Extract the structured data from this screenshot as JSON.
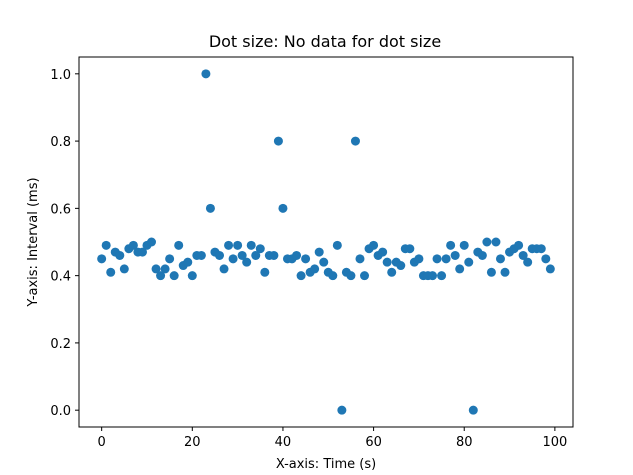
{
  "chart_data": {
    "type": "scatter",
    "title": "Dot size: No data for dot size",
    "xlabel": "X-axis: Time (s)",
    "ylabel": "Y-axis: Interval (ms)",
    "xlim": [
      -5,
      104
    ],
    "ylim": [
      -0.05,
      1.05
    ],
    "xticks": [
      0,
      20,
      40,
      60,
      80,
      100
    ],
    "xtick_labels": [
      "0",
      "20",
      "40",
      "60",
      "80",
      "100"
    ],
    "yticks": [
      0.0,
      0.2,
      0.4,
      0.6,
      0.8,
      1.0
    ],
    "ytick_labels": [
      "0.0",
      "0.2",
      "0.4",
      "0.6",
      "0.8",
      "1.0"
    ],
    "grid": false,
    "marker_color": "#1f77b4",
    "x": [
      0,
      1,
      2,
      3,
      4,
      5,
      6,
      7,
      8,
      9,
      10,
      11,
      12,
      13,
      14,
      15,
      16,
      17,
      18,
      19,
      20,
      21,
      22,
      23,
      24,
      25,
      26,
      27,
      28,
      29,
      30,
      31,
      32,
      33,
      34,
      35,
      36,
      37,
      38,
      39,
      40,
      41,
      42,
      43,
      44,
      45,
      46,
      47,
      48,
      49,
      50,
      51,
      52,
      53,
      54,
      55,
      56,
      57,
      58,
      59,
      60,
      61,
      62,
      63,
      64,
      65,
      66,
      67,
      68,
      69,
      70,
      71,
      72,
      73,
      74,
      75,
      76,
      77,
      78,
      79,
      80,
      81,
      82,
      83,
      84,
      85,
      86,
      87,
      88,
      89,
      90,
      91,
      92,
      93,
      94,
      95,
      96,
      97,
      98,
      99
    ],
    "y": [
      0.45,
      0.49,
      0.41,
      0.47,
      0.46,
      0.42,
      0.48,
      0.49,
      0.47,
      0.47,
      0.49,
      0.5,
      0.42,
      0.4,
      0.42,
      0.45,
      0.4,
      0.49,
      0.43,
      0.44,
      0.4,
      0.46,
      0.46,
      1.0,
      0.6,
      0.47,
      0.46,
      0.42,
      0.49,
      0.45,
      0.49,
      0.46,
      0.44,
      0.49,
      0.46,
      0.48,
      0.41,
      0.46,
      0.46,
      0.8,
      0.6,
      0.45,
      0.45,
      0.46,
      0.4,
      0.45,
      0.41,
      0.42,
      0.47,
      0.44,
      0.41,
      0.4,
      0.49,
      0.0,
      0.41,
      0.4,
      0.8,
      0.45,
      0.4,
      0.48,
      0.49,
      0.46,
      0.47,
      0.44,
      0.41,
      0.44,
      0.43,
      0.48,
      0.48,
      0.44,
      0.45,
      0.4,
      0.4,
      0.4,
      0.45,
      0.4,
      0.45,
      0.49,
      0.46,
      0.42,
      0.49,
      0.44,
      0.0,
      0.47,
      0.46,
      0.5,
      0.41,
      0.5,
      0.45,
      0.41,
      0.47,
      0.48,
      0.49,
      0.46,
      0.44,
      0.48,
      0.48,
      0.48,
      0.45,
      0.42
    ]
  }
}
